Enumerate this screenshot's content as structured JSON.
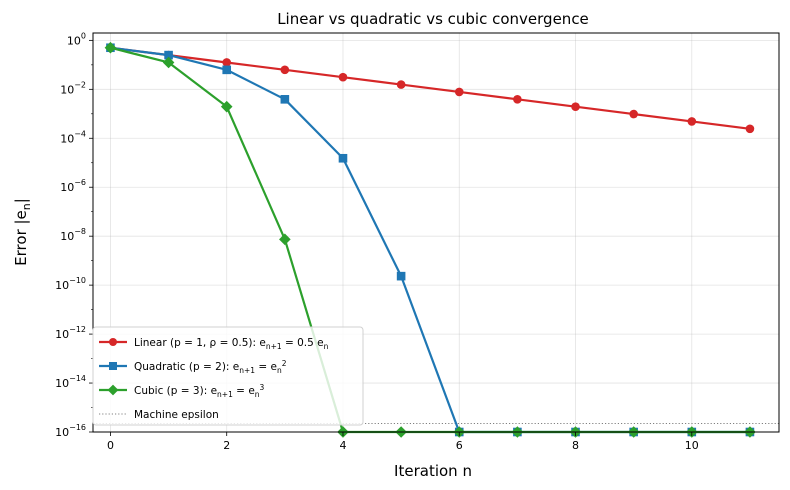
{
  "chart_data": {
    "type": "line",
    "title": "Linear vs quadratic vs cubic convergence",
    "xlabel": "Iteration n",
    "ylabel": "Error |e_n|",
    "yscale": "log",
    "xlim": [
      -0.3,
      11.5
    ],
    "ylim": [
      1e-16,
      2
    ],
    "xticks": [
      0,
      2,
      4,
      6,
      8,
      10
    ],
    "ytick_exponents": [
      0,
      -2,
      -4,
      -6,
      -8,
      -10,
      -12,
      -14,
      -16
    ],
    "grid": true,
    "legend_position": "lower-left",
    "x": [
      0,
      1,
      2,
      3,
      4,
      5,
      6,
      7,
      8,
      9,
      10,
      11
    ],
    "series": [
      {
        "name": "Linear (p = 1, ρ = 0.5): e_{n+1} = 0.5 e_n",
        "color": "#d62728",
        "marker": "circle",
        "values": [
          0.5,
          0.25,
          0.125,
          0.0625,
          0.03125,
          0.015625,
          0.0078125,
          0.00390625,
          0.001953125,
          0.0009765625,
          0.00048828125,
          0.000244140625
        ]
      },
      {
        "name": "Quadratic (p = 2): e_{n+1} = e_n^2",
        "color": "#1f77b4",
        "marker": "square",
        "values": [
          0.5,
          0.25,
          0.0625,
          0.00390625,
          1.52587890625e-05,
          2.3283064365e-10,
          1e-16,
          1e-16,
          1e-16,
          1e-16,
          1e-16,
          1e-16
        ]
      },
      {
        "name": "Cubic (p = 3): e_{n+1} = e_n^3",
        "color": "#2ca02c",
        "marker": "diamond",
        "values": [
          0.5,
          0.125,
          0.001953125,
          7.450580596923828e-09,
          1e-16,
          1e-16,
          1e-16,
          1e-16,
          1e-16,
          1e-16,
          1e-16,
          1e-16
        ]
      }
    ],
    "reference_line": {
      "name": "Machine epsilon",
      "value": 2.22e-16,
      "color": "#808080",
      "style": "dotted"
    }
  }
}
